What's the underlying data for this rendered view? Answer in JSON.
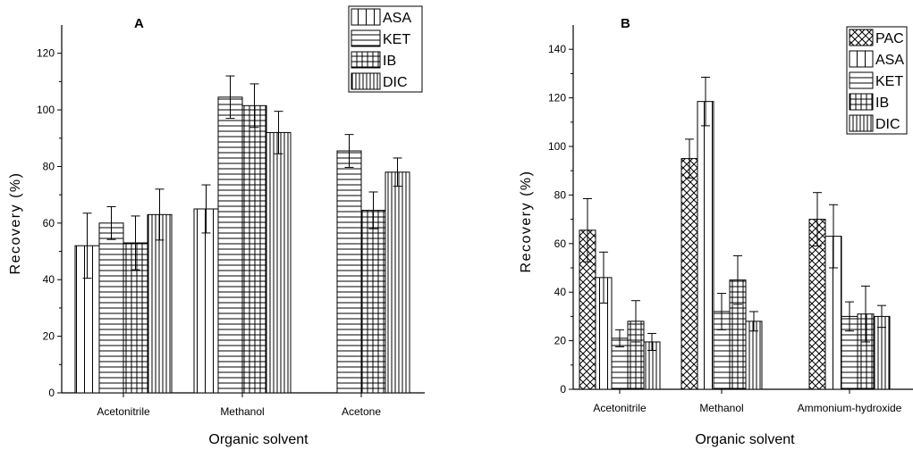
{
  "chart_data": [
    {
      "panel_label": "A",
      "type": "bar",
      "xlabel": "Organic solvent",
      "ylabel": "Recovery (%)",
      "ylim": [
        0,
        130
      ],
      "yticks": [
        0,
        20,
        40,
        60,
        80,
        100,
        120
      ],
      "categories": [
        "Acetonitrile",
        "Methanol",
        "Acetone"
      ],
      "legend_position": "top-right",
      "grid": false,
      "series": [
        {
          "name": "ASA",
          "pattern": "vertical",
          "values": [
            52,
            65,
            0
          ],
          "errors": [
            11.5,
            8.5,
            0
          ]
        },
        {
          "name": "KET",
          "pattern": "horizontal",
          "values": [
            60,
            104.5,
            85.5
          ],
          "errors": [
            5.8,
            7.5,
            5.8
          ]
        },
        {
          "name": "IB",
          "pattern": "grid",
          "values": [
            53,
            101.5,
            64.5
          ],
          "errors": [
            9.5,
            7.7,
            6.5
          ]
        },
        {
          "name": "DIC",
          "pattern": "dense-vertical",
          "values": [
            63,
            92,
            78
          ],
          "errors": [
            9,
            7.5,
            5
          ]
        }
      ]
    },
    {
      "panel_label": "B",
      "type": "bar",
      "xlabel": "Organic solvent",
      "ylabel": "Recovery (%)",
      "ylim": [
        0,
        150
      ],
      "yticks": [
        0,
        20,
        40,
        60,
        80,
        100,
        120,
        140
      ],
      "categories": [
        "Acetonitrile",
        "Methanol",
        "Ammonium-hydroxide"
      ],
      "legend_position": "top-right",
      "grid": false,
      "series": [
        {
          "name": "PAC",
          "pattern": "crosshatch",
          "values": [
            65.5,
            95,
            70
          ],
          "errors": [
            13,
            8,
            11
          ]
        },
        {
          "name": "ASA",
          "pattern": "vertical",
          "values": [
            46,
            118.5,
            63
          ],
          "errors": [
            10.5,
            10,
            13
          ]
        },
        {
          "name": "KET",
          "pattern": "horizontal",
          "values": [
            21,
            32,
            30
          ],
          "errors": [
            3.5,
            7.5,
            6
          ]
        },
        {
          "name": "IB",
          "pattern": "grid",
          "values": [
            28,
            45,
            31
          ],
          "errors": [
            8.5,
            10,
            11.5
          ]
        },
        {
          "name": "DIC",
          "pattern": "dense-vertical",
          "values": [
            19.5,
            28,
            30
          ],
          "errors": [
            3.5,
            4,
            4.5
          ]
        }
      ]
    }
  ]
}
